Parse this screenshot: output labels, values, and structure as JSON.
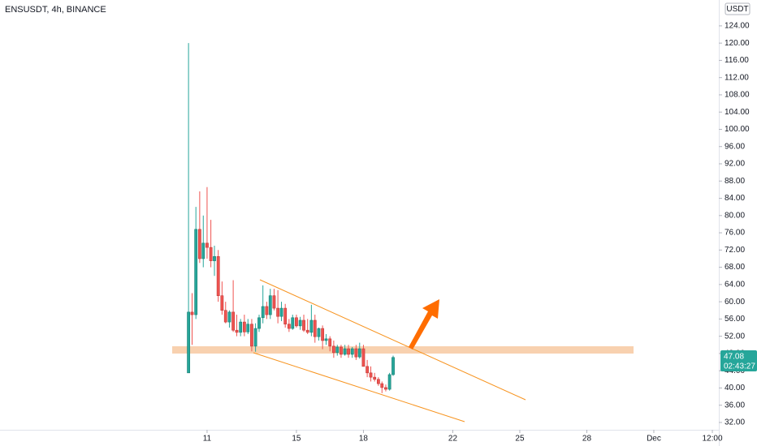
{
  "chart_data": {
    "type": "candlestick",
    "title": "ENSUSDT, 4h, BINANCE",
    "currency": "USDT",
    "countdown": "02:43:27",
    "up_color": "#26a69a",
    "down_color": "#ef5350",
    "x": [
      10.17,
      10.33,
      10.5,
      10.67,
      10.83,
      11,
      11.17,
      11.33,
      11.5,
      11.67,
      11.83,
      12,
      12.17,
      12.33,
      12.5,
      12.67,
      12.83,
      13,
      13.17,
      13.33,
      13.5,
      13.67,
      13.83,
      14,
      14.17,
      14.33,
      14.5,
      14.67,
      14.83,
      15,
      15.17,
      15.33,
      15.5,
      15.67,
      15.83,
      16,
      16.17,
      16.33,
      16.5,
      16.67,
      16.83,
      17,
      17.17,
      17.33,
      17.5,
      17.67,
      17.83,
      18,
      18.17,
      18.33,
      18.5,
      18.67,
      18.83,
      19,
      19.17,
      19.33
    ],
    "open": [
      43.5,
      57.6,
      57.0,
      76.8,
      70.0,
      73.6,
      72.6,
      69.5,
      70.5,
      61.4,
      58.0,
      55.3,
      57.6,
      53.4,
      52.9,
      55.3,
      53.0,
      54.8,
      49.7,
      53.8,
      56.3,
      58.9,
      57.0,
      61.4,
      58.5,
      56.6,
      58.5,
      54.8,
      53.8,
      56.3,
      54.4,
      55.7,
      53.4,
      52.9,
      55.7,
      51.9,
      53.8,
      51.0,
      51.4,
      49.7,
      48.2,
      49.5,
      47.8,
      49.1,
      47.8,
      49.1,
      47.2,
      49.1,
      45.0,
      43.5,
      42.5,
      42.0,
      41.0,
      40.1,
      39.7,
      43.1
    ],
    "high": [
      120,
      62,
      82,
      85.6,
      80,
      86.6,
      79,
      73,
      72,
      64.7,
      60,
      58,
      65,
      57,
      56,
      57,
      56,
      56,
      55,
      57,
      63.8,
      60,
      63,
      63,
      62.7,
      60,
      59.5,
      56,
      57,
      57,
      56.5,
      57,
      56,
      59.3,
      57,
      54,
      54.5,
      52.5,
      52,
      51,
      50,
      50,
      50,
      50,
      49.5,
      50,
      50.5,
      50,
      46.5,
      45,
      43.5,
      42.5,
      41.5,
      40.8,
      43.5,
      47.5
    ],
    "low": [
      43.5,
      50,
      56,
      69,
      68,
      70,
      68,
      66,
      60,
      57,
      55,
      54,
      53,
      52,
      52,
      52,
      52.5,
      48.5,
      48.4,
      53,
      55,
      56,
      56,
      58,
      55,
      55.5,
      54,
      53,
      53.5,
      54,
      53.5,
      53,
      52.5,
      52,
      50.5,
      51,
      49,
      50,
      48.5,
      47,
      47.5,
      47,
      47.5,
      47,
      47,
      46.5,
      46.8,
      45,
      42.5,
      41.5,
      41.5,
      40.5,
      38.8,
      39.2,
      39.4,
      42.8
    ],
    "close": [
      57.6,
      57.0,
      76.8,
      70.0,
      73.6,
      72.6,
      69.5,
      70.5,
      61.4,
      58.0,
      55.3,
      57.6,
      53.4,
      52.9,
      55.3,
      53.0,
      54.8,
      49.7,
      53.8,
      56.3,
      58.9,
      57.0,
      61.4,
      58.5,
      56.6,
      58.5,
      54.8,
      53.8,
      56.3,
      54.4,
      55.7,
      53.4,
      52.9,
      55.7,
      51.9,
      53.8,
      51.0,
      51.4,
      49.7,
      48.2,
      49.5,
      47.8,
      49.1,
      47.8,
      49.1,
      47.2,
      49.1,
      45.0,
      43.5,
      42.5,
      42.0,
      41.0,
      40.1,
      39.7,
      43.1,
      47.08
    ],
    "xlim": [
      1.73,
      33.91
    ],
    "xticks": [
      11,
      15,
      18,
      22,
      25,
      28,
      {
        "value": 31,
        "label": "Dec"
      },
      {
        "value": 33.62,
        "label": "12:00"
      }
    ],
    "ylim": [
      30.3,
      130.0
    ],
    "yticks": [
      {
        "value": 32,
        "label": "32.00"
      },
      {
        "value": 36,
        "label": "36.00"
      },
      {
        "value": 40,
        "label": "40.00"
      },
      {
        "value": 44,
        "label": "44.00"
      },
      {
        "value": 48,
        "label": "48.00"
      },
      {
        "value": 52,
        "label": "52.00"
      },
      {
        "value": 56,
        "label": "56.00"
      },
      {
        "value": 60,
        "label": "60.00"
      },
      {
        "value": 64,
        "label": "64.00"
      },
      {
        "value": 68,
        "label": "68.00"
      },
      {
        "value": 72,
        "label": "72.00"
      },
      {
        "value": 76,
        "label": "76.00"
      },
      {
        "value": 80,
        "label": "80.00"
      },
      {
        "value": 84,
        "label": "84.00"
      },
      {
        "value": 88,
        "label": "88.00"
      },
      {
        "value": 92,
        "label": "92.00"
      },
      {
        "value": 96,
        "label": "96.00"
      },
      {
        "value": 100,
        "label": "100.00"
      },
      {
        "value": 104,
        "label": "104.00"
      },
      {
        "value": 108,
        "label": "108.00"
      },
      {
        "value": 112,
        "label": "112.00"
      },
      {
        "value": 116,
        "label": "116.00"
      },
      {
        "value": 120,
        "label": "120.00"
      },
      {
        "value": 124,
        "label": "124.00"
      }
    ]
  }
}
